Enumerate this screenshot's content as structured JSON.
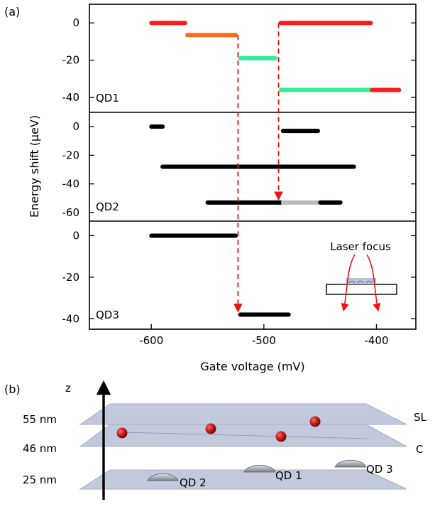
{
  "panel_a_label": "(a)",
  "panel_b_label": "(b)",
  "chart_data": {
    "type": "scatter",
    "xlabel": "Gate voltage (mV)",
    "ylabel": "Energy shift (µeV)",
    "xlim": [
      -655,
      -365
    ],
    "x_ticks": [
      -600,
      -500,
      -400
    ],
    "grid": false,
    "panels": [
      {
        "label": "QD1",
        "ylim": [
          -48,
          10
        ],
        "y_ticks": [
          0,
          -20,
          -40
        ],
        "segments": [
          {
            "x": [
              -600,
              -570
            ],
            "y": 0,
            "color": "#ff1a1a"
          },
          {
            "x": [
              -568,
              -525
            ],
            "y": -6.5,
            "color": "#ff6a1a"
          },
          {
            "x": [
              -521,
              -490
            ],
            "y": -19,
            "color": "#33ee99"
          },
          {
            "x": [
              -485,
              -405
            ],
            "y": 0,
            "color": "#ff1a1a"
          },
          {
            "x": [
              -485,
              -405
            ],
            "y": -36,
            "color": "#33ee99"
          },
          {
            "x": [
              -404,
              -380
            ],
            "y": -36,
            "color": "#ff1a1a"
          }
        ]
      },
      {
        "label": "QD2",
        "ylim": [
          -66,
          10
        ],
        "y_ticks": [
          0,
          -20,
          -40,
          -60
        ],
        "segments": [
          {
            "x": [
              -600,
              -590
            ],
            "y": 0,
            "color": "#000000"
          },
          {
            "x": [
              -483,
              -452
            ],
            "y": -3,
            "color": "#000000"
          },
          {
            "x": [
              -590,
              -420
            ],
            "y": -28,
            "color": "#000000"
          },
          {
            "x": [
              -550,
              -485
            ],
            "y": -53,
            "color": "#000000"
          },
          {
            "x": [
              -483,
              -452
            ],
            "y": -53,
            "color": "#bbbbbb"
          },
          {
            "x": [
              -450,
              -432
            ],
            "y": -53,
            "color": "#000000"
          }
        ]
      },
      {
        "label": "QD3",
        "ylim": [
          -45,
          7
        ],
        "y_ticks": [
          0,
          -20,
          -40
        ],
        "segments": [
          {
            "x": [
              -600,
              -525
            ],
            "y": 0,
            "color": "#000000"
          },
          {
            "x": [
              -521,
              -478
            ],
            "y": -38,
            "color": "#000000"
          }
        ]
      }
    ],
    "arrows": [
      {
        "x": -523,
        "from_y_panel1": -6.5,
        "to_y_panel3": -38,
        "color": "#ee1111",
        "style": "dashed"
      },
      {
        "x": -487,
        "from_y_panel1": 0,
        "to_y_panel2": -53,
        "color": "#ee1111",
        "style": "dashed"
      }
    ],
    "inset_label": "Laser focus"
  },
  "schematic": {
    "axis_label": "z",
    "layers": [
      {
        "height": "55 nm",
        "label": "SL"
      },
      {
        "height": "46 nm",
        "label": "C"
      },
      {
        "height": "25 nm",
        "label": ""
      }
    ],
    "dots": [
      "QD 2",
      "QD 1",
      "QD 3"
    ]
  }
}
